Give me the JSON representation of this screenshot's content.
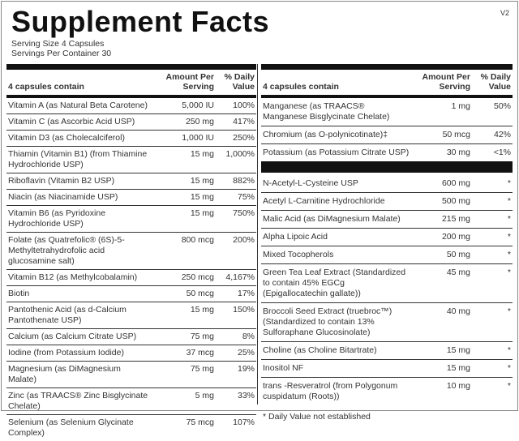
{
  "title": "Supplement Facts",
  "version": "V2",
  "serving_size": "Serving Size  4 Capsules",
  "servings_per_container": "Servings Per Container  30",
  "header": {
    "name": "4 capsules contain",
    "amount": "Amount Per Serving",
    "dv": "% Daily Value"
  },
  "left_rows": [
    {
      "name": "Vitamin A (as Natural Beta Carotene)",
      "amount": "5,000 IU",
      "dv": "100%"
    },
    {
      "name": "Vitamin C (as Ascorbic Acid USP)",
      "amount": "250 mg",
      "dv": "417%"
    },
    {
      "name": "Vitamin D3 (as Cholecalciferol)",
      "amount": "1,000 IU",
      "dv": "250%"
    },
    {
      "name": "Thiamin (Vitamin B1) (from Thiamine Hydrochloride USP)",
      "amount": "15 mg",
      "dv": "1,000%"
    },
    {
      "name": "Riboflavin (Vitamin B2 USP)",
      "amount": "15 mg",
      "dv": "882%"
    },
    {
      "name": "Niacin (as Niacinamide USP)",
      "amount": "15 mg",
      "dv": "75%"
    },
    {
      "name": "Vitamin B6 (as Pyridoxine Hydrochloride USP)",
      "amount": "15 mg",
      "dv": "750%"
    },
    {
      "name": "Folate (as Quatrefolic® (6S)-5-Methyltetrahydrofolic acid glucosamine salt)",
      "amount": "800 mcg",
      "dv": "200%"
    },
    {
      "name": "Vitamin B12 (as Methylcobalamin)",
      "amount": "250 mcg",
      "dv": "4,167%"
    },
    {
      "name": "Biotin",
      "amount": "50 mcg",
      "dv": "17%"
    },
    {
      "name": "Pantothenic Acid (as d-Calcium Pantothenate USP)",
      "amount": "15 mg",
      "dv": "150%"
    },
    {
      "name": "Calcium (as Calcium Citrate USP)",
      "amount": "75 mg",
      "dv": "8%"
    },
    {
      "name": "Iodine (from Potassium Iodide)",
      "amount": "37 mcg",
      "dv": "25%"
    },
    {
      "name": "Magnesium (as DiMagnesium Malate)",
      "amount": "75 mg",
      "dv": "19%"
    },
    {
      "name": "Zinc (as TRAACS® Zinc Bisglycinate Chelate)",
      "amount": "5 mg",
      "dv": "33%"
    },
    {
      "name": "Selenium (as Selenium Glycinate Complex)",
      "amount": "75 mcg",
      "dv": "107%"
    }
  ],
  "right_rows_top": [
    {
      "name": "Manganese (as TRAACS® Manganese Bisglycinate Chelate)",
      "amount": "1 mg",
      "dv": "50%"
    },
    {
      "name": "Chromium (as O-polynicotinate)‡",
      "amount": "50 mcg",
      "dv": "42%"
    },
    {
      "name": "Potassium (as Potassium Citrate USP)",
      "amount": "30 mg",
      "dv": "<1%"
    }
  ],
  "right_rows_bottom": [
    {
      "name": "N-Acetyl-L-Cysteine USP",
      "amount": "600 mg",
      "dv": "*"
    },
    {
      "name": "Acetyl L-Carnitine Hydrochloride",
      "amount": "500 mg",
      "dv": "*"
    },
    {
      "name": "Malic Acid (as DiMagnesium Malate)",
      "amount": "215 mg",
      "dv": "*"
    },
    {
      "name": "Alpha Lipoic Acid",
      "amount": "200 mg",
      "dv": "*"
    },
    {
      "name": "Mixed Tocopherols",
      "amount": "50 mg",
      "dv": "*"
    },
    {
      "name": "Green Tea Leaf Extract (Standardized to contain 45% EGCg (Epigallocatechin gallate))",
      "amount": "45 mg",
      "dv": "*"
    },
    {
      "name": "Broccoli Seed Extract (truebroc™) (Standardized to contain 13% Sulforaphane Glucosinolate)",
      "amount": "40 mg",
      "dv": "*"
    },
    {
      "name": "Choline (as Choline Bitartrate)",
      "amount": "15 mg",
      "dv": "*"
    },
    {
      "name": "Inositol NF",
      "amount": "15 mg",
      "dv": "*"
    },
    {
      "name": "trans -Resveratrol (from Polygonum cuspidatum (Roots))",
      "amount": "10 mg",
      "dv": "*"
    }
  ],
  "footnote": "*  Daily Value not established"
}
